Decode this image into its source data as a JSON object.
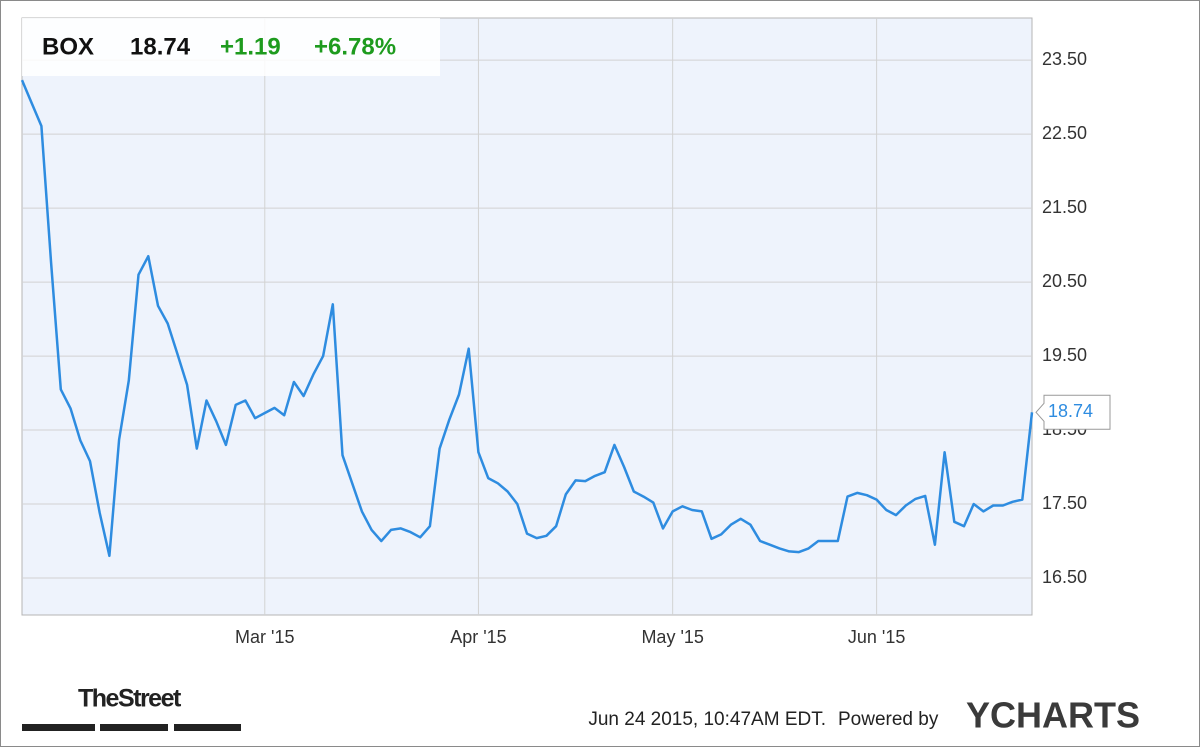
{
  "header": {
    "ticker": "BOX",
    "price": "18.74",
    "change": "+1.19",
    "change_pct": "+6.78%"
  },
  "footer": {
    "timestamp": "Jun 24 2015, 10:47AM EDT.",
    "powered_by": "Powered by",
    "brand": "YCHARTS",
    "source": "TheStreet"
  },
  "chart_data": {
    "type": "line",
    "grid": true,
    "categories": [
      null,
      null,
      null,
      null,
      null,
      null,
      null,
      null,
      null,
      null,
      null,
      null,
      null,
      null,
      null,
      null,
      null,
      null,
      null,
      null,
      null,
      null,
      null,
      null,
      null,
      "Mar '15",
      null,
      null,
      null,
      null,
      null,
      null,
      null,
      null,
      null,
      null,
      null,
      null,
      null,
      null,
      null,
      null,
      null,
      null,
      null,
      null,
      null,
      "Apr '15",
      null,
      null,
      null,
      null,
      null,
      null,
      null,
      null,
      null,
      null,
      null,
      null,
      null,
      null,
      null,
      null,
      null,
      null,
      null,
      "May '15",
      null,
      null,
      null,
      null,
      null,
      null,
      null,
      null,
      null,
      null,
      null,
      null,
      null,
      null,
      null,
      null,
      null,
      null,
      null,
      null,
      "Jun '15",
      null,
      null,
      null,
      null,
      null,
      null,
      null,
      null,
      null,
      null,
      null,
      null,
      null,
      null,
      null,
      null
    ],
    "series": [
      {
        "name": "BOX",
        "color": "#2e8ce0",
        "values": [
          23.23,
          22.92,
          22.61,
          20.76,
          19.05,
          18.79,
          18.36,
          18.08,
          17.38,
          16.8,
          18.37,
          19.17,
          20.6,
          20.85,
          20.18,
          19.94,
          19.53,
          19.11,
          18.25,
          18.9,
          18.62,
          18.3,
          18.84,
          18.9,
          18.66,
          18.73,
          18.8,
          18.7,
          19.15,
          18.96,
          19.25,
          19.5,
          20.2,
          18.16,
          17.78,
          17.4,
          17.15,
          17.0,
          17.15,
          17.17,
          17.12,
          17.05,
          17.2,
          18.25,
          18.64,
          18.98,
          19.6,
          18.2,
          17.85,
          17.78,
          17.67,
          17.5,
          17.1,
          17.04,
          17.07,
          17.2,
          17.63,
          17.82,
          17.81,
          17.88,
          17.93,
          18.3,
          18.0,
          17.67,
          17.6,
          17.52,
          17.17,
          17.4,
          17.47,
          17.42,
          17.4,
          17.03,
          17.09,
          17.22,
          17.3,
          17.22,
          17.0,
          16.95,
          16.9,
          16.86,
          16.85,
          16.9,
          17.0,
          17.0,
          17.0,
          17.6,
          17.65,
          17.62,
          17.56,
          17.42,
          17.35,
          17.48,
          17.57,
          17.61,
          16.95,
          18.2,
          17.26,
          17.2,
          17.5,
          17.4,
          17.48,
          17.48,
          17.53,
          17.56,
          18.74
        ]
      }
    ],
    "ylim": [
      16.0,
      24.07
    ],
    "yticks": [
      {
        "value": 16.5,
        "label": "16.50"
      },
      {
        "value": 17.5,
        "label": "17.50"
      },
      {
        "value": 18.5,
        "label": "18.50"
      },
      {
        "value": 19.5,
        "label": "19.50"
      },
      {
        "value": 20.5,
        "label": "20.50"
      },
      {
        "value": 21.5,
        "label": "21.50"
      },
      {
        "value": 22.5,
        "label": "22.50"
      },
      {
        "value": 23.5,
        "label": "23.50"
      }
    ]
  }
}
